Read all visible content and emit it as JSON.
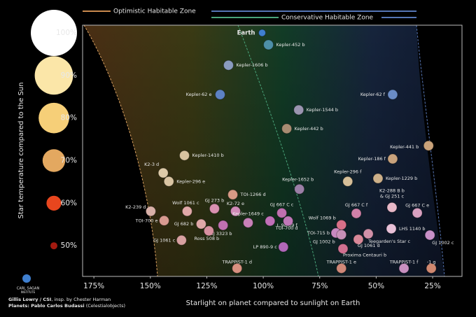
{
  "chart_data": {
    "type": "scatter",
    "zones": [
      {
        "name": "Optimistic Habitable Zone",
        "color": "#c98a4e"
      },
      {
        "name": "Conservative Habitable Zone",
        "color": "#4aa57a"
      }
    ],
    "x_label": "Starlight on planet compared to sunlight on Earth",
    "y_label": "Star temperature compared to the Sun",
    "xlim": [
      180,
      12
    ],
    "ylim": [
      42.8,
      101.8
    ],
    "xticks": [
      {
        "value": 175,
        "label": "175%"
      },
      {
        "value": 150,
        "label": "150%"
      },
      {
        "value": 125,
        "label": "125%"
      },
      {
        "value": 100,
        "label": "100%"
      },
      {
        "value": 75,
        "label": "75%"
      },
      {
        "value": 50,
        "label": "50%"
      },
      {
        "value": 25,
        "label": "25%"
      }
    ],
    "yticks": [
      {
        "value": 100,
        "label": "100%"
      },
      {
        "value": 90,
        "label": "90%"
      },
      {
        "value": 80,
        "label": "80%"
      },
      {
        "value": 70,
        "label": "70%"
      },
      {
        "value": 60,
        "label": "60%"
      },
      {
        "value": 50,
        "label": "50%"
      }
    ],
    "star_colors": [
      "#ffffff",
      "#fbe6a8",
      "#f6cf78",
      "#e3a860",
      "#e8461e",
      "#a31a10"
    ],
    "labels": [
      "Earth",
      "Kepler-452 b",
      "Kepler-1606 b",
      "Kepler-62 e",
      "Kepler-62 f",
      "Kepler-1544 b",
      "Kepler-442 b",
      "Kepler-441 b",
      "Kepler-1410 b",
      "Kepler-186 f",
      "K2-3 d",
      "Kepler-296 e",
      "Kepler-1652 b",
      "Kepler-296 f",
      "Kepler-1229 b",
      "TOI-1266 d",
      "K2-288 B b\n& GJ 251 c",
      "GJ 667 C e",
      "K2-239 d",
      "Wolf 1061 c",
      "GJ 273 b",
      "K2-72 e",
      "GJ 667 C c",
      "Kepler-1649 c",
      "L 98-59 f",
      "GJ 667 C f",
      "Wolf 1069 b",
      "TOI-715 b",
      "LHS 1140 b",
      "TOI-700 e",
      "GJ 682 b",
      "GJ 3323 b",
      "Ross 508 b",
      "TOI-700 d",
      "GJ 1061 c",
      "GJ 1002 b",
      "Teegarden's Star c",
      "GJ 1061 d",
      "GJ 1002 c",
      "LP 890-9 c",
      "Proxima Centauri b",
      "TRAPPIST-1 d",
      "TRAPPIST-1 e",
      "TRAPPIST-1 f",
      "-1 g"
    ],
    "x": [
      100.5,
      97.7,
      115.4,
      119.1,
      42.7,
      84.3,
      89.6,
      26.8,
      134.9,
      42.7,
      144.3,
      141.8,
      84.0,
      62.6,
      49.2,
      113.5,
      43.0,
      31.8,
      149.8,
      133.7,
      121.6,
      112.3,
      91.8,
      106.7,
      97.0,
      58.8,
      65.4,
      67.8,
      43.3,
      143.9,
      127.5,
      117.8,
      124.1,
      89.0,
      136.2,
      65.4,
      53.5,
      57.9,
      26.2,
      91.1,
      64.7,
      111.6,
      65.4,
      37.7,
      25.6
    ],
    "values": [
      100,
      97.2,
      92.4,
      85.5,
      85.5,
      81.9,
      77.5,
      73.5,
      71.2,
      70.4,
      67.1,
      65.1,
      63.3,
      65.1,
      65.8,
      62.0,
      59.0,
      57.7,
      58.1,
      58.1,
      58.7,
      58.1,
      57.7,
      55.4,
      55.8,
      57.6,
      54.9,
      53.0,
      54.0,
      55.9,
      55.1,
      54.8,
      53.5,
      55.8,
      51.3,
      52.6,
      52.8,
      51.5,
      52.5,
      49.7,
      49.3,
      44.7,
      44.7,
      44.7,
      44.7
    ],
    "colors": [
      "#3f7fcf",
      "#4d8fa8",
      "#8a9bbf",
      "#5d82c4",
      "#6a8cc6",
      "#9a95b0",
      "#a88c72",
      "#c9a27a",
      "#d8c3a0",
      "#c8a27c",
      "#ddcaa8",
      "#d9c4a2",
      "#9b7fa6",
      "#d6bf98",
      "#cdb08a",
      "#d89a85",
      "#e8b8c8",
      "#d8a0c0",
      "#d8b0a8",
      "#e0a8a8",
      "#d890b0",
      "#d08ab8",
      "#c070b0",
      "#c880b8",
      "#c070b8",
      "#d080a8",
      "#d87088",
      "#c888c0",
      "#e8c0d8",
      "#d89a90",
      "#e0a8a8",
      "#c070b0",
      "#d890a0",
      "#c078b8",
      "#d8a0a0",
      "#c890b8",
      "#d090a8",
      "#d88898",
      "#c890c8",
      "#b068b8",
      "#d07090",
      "#d89080",
      "#d08878",
      "#c890c0",
      "#d08870"
    ]
  }
}
